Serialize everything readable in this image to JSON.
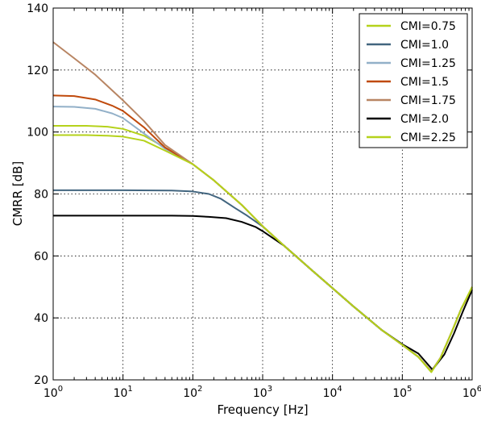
{
  "chart_data": {
    "type": "line",
    "xlabel": "Frequency [Hz]",
    "ylabel": "CMRR [dB]",
    "x_scale": "log",
    "xlim": [
      1,
      1000000
    ],
    "ylim": [
      20,
      140
    ],
    "grid": true,
    "legend_position": "top-right",
    "x_ticks": [
      {
        "value": 1,
        "base": "10",
        "exp": "0"
      },
      {
        "value": 10,
        "base": "10",
        "exp": "1"
      },
      {
        "value": 100,
        "base": "10",
        "exp": "2"
      },
      {
        "value": 1000,
        "base": "10",
        "exp": "3"
      },
      {
        "value": 10000,
        "base": "10",
        "exp": "4"
      },
      {
        "value": 100000,
        "base": "10",
        "exp": "5"
      },
      {
        "value": 1000000,
        "base": "10",
        "exp": "6"
      }
    ],
    "y_ticks": [
      {
        "value": 20,
        "label": "20"
      },
      {
        "value": 40,
        "label": "40"
      },
      {
        "value": 60,
        "label": "60"
      },
      {
        "value": 80,
        "label": "80"
      },
      {
        "value": 100,
        "label": "100"
      },
      {
        "value": 120,
        "label": "120"
      },
      {
        "value": 140,
        "label": "140"
      }
    ],
    "series": [
      {
        "name": "CMI=0.75",
        "color": "#b5d21b",
        "points": [
          [
            1,
            102
          ],
          [
            3,
            102
          ],
          [
            6,
            101.7
          ],
          [
            10,
            101
          ],
          [
            20,
            98.8
          ],
          [
            40,
            95
          ],
          [
            100,
            89.6
          ],
          [
            200,
            84.4
          ],
          [
            500,
            76.5
          ],
          [
            1000,
            69.6
          ],
          [
            2000,
            63.4
          ],
          [
            5000,
            55.5
          ],
          [
            10000,
            49.6
          ],
          [
            20000,
            43.7
          ],
          [
            50000,
            36.2
          ],
          [
            100000,
            31.3
          ],
          [
            170000,
            27.4
          ],
          [
            260000,
            22.5
          ],
          [
            350000,
            27
          ],
          [
            500000,
            35
          ],
          [
            700000,
            43
          ],
          [
            1000000,
            50
          ]
        ]
      },
      {
        "name": "CMI=1.0",
        "color": "#42657f",
        "points": [
          [
            1,
            81.2
          ],
          [
            10,
            81.2
          ],
          [
            50,
            81.1
          ],
          [
            100,
            80.8
          ],
          [
            170,
            80
          ],
          [
            250,
            78.5
          ],
          [
            400,
            75.5
          ],
          [
            600,
            73
          ],
          [
            1000,
            69.5
          ],
          [
            2000,
            63.4
          ],
          [
            5000,
            55.5
          ],
          [
            10000,
            49.6
          ],
          [
            20000,
            43.7
          ],
          [
            50000,
            36.2
          ],
          [
            100000,
            31.3
          ],
          [
            170000,
            27.4
          ],
          [
            260000,
            22.7
          ],
          [
            350000,
            27
          ],
          [
            500000,
            35
          ],
          [
            700000,
            43
          ],
          [
            1000000,
            49.5
          ]
        ]
      },
      {
        "name": "CMI=1.25",
        "color": "#92b0c8",
        "points": [
          [
            1,
            108.2
          ],
          [
            2,
            108.1
          ],
          [
            4,
            107.5
          ],
          [
            7,
            106
          ],
          [
            10,
            104.5
          ],
          [
            20,
            99.5
          ],
          [
            40,
            94.6
          ],
          [
            100,
            89.6
          ],
          [
            200,
            84.4
          ],
          [
            500,
            76.5
          ],
          [
            1000,
            69.6
          ],
          [
            2000,
            63.4
          ],
          [
            5000,
            55.5
          ],
          [
            10000,
            49.6
          ],
          [
            20000,
            43.7
          ],
          [
            50000,
            36.2
          ],
          [
            100000,
            31.3
          ],
          [
            170000,
            27.4
          ],
          [
            260000,
            22.7
          ],
          [
            350000,
            27
          ],
          [
            500000,
            35
          ],
          [
            700000,
            43
          ],
          [
            1000000,
            49.5
          ]
        ]
      },
      {
        "name": "CMI=1.5",
        "color": "#c04a0c",
        "points": [
          [
            1,
            111.8
          ],
          [
            2,
            111.6
          ],
          [
            4,
            110.5
          ],
          [
            7,
            108.5
          ],
          [
            10,
            106.8
          ],
          [
            20,
            101.5
          ],
          [
            40,
            95
          ],
          [
            100,
            89.6
          ],
          [
            200,
            84.4
          ],
          [
            500,
            76.5
          ],
          [
            1000,
            69.6
          ],
          [
            2000,
            63.4
          ],
          [
            5000,
            55.5
          ],
          [
            10000,
            49.6
          ],
          [
            20000,
            43.7
          ],
          [
            50000,
            36.2
          ],
          [
            100000,
            31.3
          ],
          [
            170000,
            27.4
          ],
          [
            260000,
            22.7
          ],
          [
            350000,
            27
          ],
          [
            500000,
            35
          ],
          [
            700000,
            43
          ],
          [
            1000000,
            49.5
          ]
        ]
      },
      {
        "name": "CMI=1.75",
        "color": "#b88563",
        "points": [
          [
            1,
            129
          ],
          [
            2,
            123.8
          ],
          [
            4,
            118.5
          ],
          [
            10,
            110.2
          ],
          [
            20,
            103.5
          ],
          [
            40,
            95.8
          ],
          [
            100,
            89.6
          ],
          [
            200,
            84.4
          ],
          [
            500,
            76.5
          ],
          [
            1000,
            69.6
          ],
          [
            2000,
            63.4
          ],
          [
            5000,
            55.5
          ],
          [
            10000,
            49.6
          ],
          [
            20000,
            43.7
          ],
          [
            50000,
            36.2
          ],
          [
            100000,
            31.3
          ],
          [
            170000,
            27.4
          ],
          [
            260000,
            22.7
          ],
          [
            350000,
            27
          ],
          [
            500000,
            35
          ],
          [
            700000,
            43
          ],
          [
            1000000,
            49.5
          ]
        ]
      },
      {
        "name": "CMI=2.0",
        "color": "#000000",
        "points": [
          [
            1,
            73
          ],
          [
            10,
            73
          ],
          [
            50,
            73
          ],
          [
            100,
            72.9
          ],
          [
            170,
            72.6
          ],
          [
            300,
            72.2
          ],
          [
            500,
            71
          ],
          [
            800,
            69.3
          ],
          [
            1000,
            68
          ],
          [
            2000,
            63.4
          ],
          [
            5000,
            55.5
          ],
          [
            10000,
            49.6
          ],
          [
            20000,
            43.7
          ],
          [
            50000,
            36.2
          ],
          [
            100000,
            31.5
          ],
          [
            170000,
            28.5
          ],
          [
            270000,
            23.3
          ],
          [
            400000,
            28.2
          ],
          [
            550000,
            35
          ],
          [
            750000,
            42.5
          ],
          [
            1000000,
            49
          ]
        ]
      },
      {
        "name": "CMI=2.25",
        "color": "#b5d21b",
        "points": [
          [
            1,
            99
          ],
          [
            3,
            99
          ],
          [
            6,
            98.8
          ],
          [
            10,
            98.5
          ],
          [
            20,
            97.2
          ],
          [
            40,
            94
          ],
          [
            100,
            89.6
          ],
          [
            200,
            84.4
          ],
          [
            500,
            76.5
          ],
          [
            1000,
            69.6
          ],
          [
            2000,
            63.4
          ],
          [
            5000,
            55.5
          ],
          [
            10000,
            49.6
          ],
          [
            20000,
            43.7
          ],
          [
            50000,
            36.2
          ],
          [
            100000,
            31.3
          ],
          [
            170000,
            27.4
          ],
          [
            260000,
            22.5
          ],
          [
            350000,
            27
          ],
          [
            500000,
            35
          ],
          [
            700000,
            43
          ],
          [
            1000000,
            50
          ]
        ]
      }
    ]
  }
}
